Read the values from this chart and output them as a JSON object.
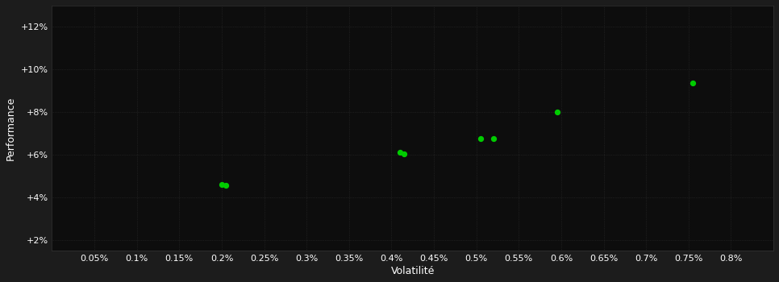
{
  "background_color": "#1c1c1c",
  "plot_bg_color": "#0d0d0d",
  "grid_color": "#2d2d2d",
  "dot_color": "#00cc00",
  "xlabel": "Volatilité",
  "ylabel": "Performance",
  "xlim": [
    0.0,
    0.85
  ],
  "ylim": [
    1.5,
    13.0
  ],
  "xticks": [
    0.05,
    0.1,
    0.15,
    0.2,
    0.25,
    0.3,
    0.35,
    0.4,
    0.45,
    0.5,
    0.55,
    0.6,
    0.65,
    0.7,
    0.75,
    0.8
  ],
  "yticks": [
    2.0,
    4.0,
    6.0,
    8.0,
    10.0,
    12.0
  ],
  "ytick_labels": [
    "+2%",
    "+4%",
    "+6%",
    "+8%",
    "+10%",
    "+12%"
  ],
  "xtick_labels": [
    "0.05%",
    "0.1%",
    "0.15%",
    "0.2%",
    "0.25%",
    "0.3%",
    "0.35%",
    "0.4%",
    "0.45%",
    "0.5%",
    "0.55%",
    "0.6%",
    "0.65%",
    "0.7%",
    "0.75%",
    "0.8%"
  ],
  "points_x": [
    0.2,
    0.205,
    0.41,
    0.415,
    0.505,
    0.52,
    0.595,
    0.755
  ],
  "points_y": [
    4.6,
    4.55,
    6.1,
    6.05,
    6.75,
    6.75,
    8.0,
    9.35
  ],
  "dot_size": 18,
  "font_color": "#ffffff",
  "font_size_ticks": 8,
  "font_size_labels": 9
}
